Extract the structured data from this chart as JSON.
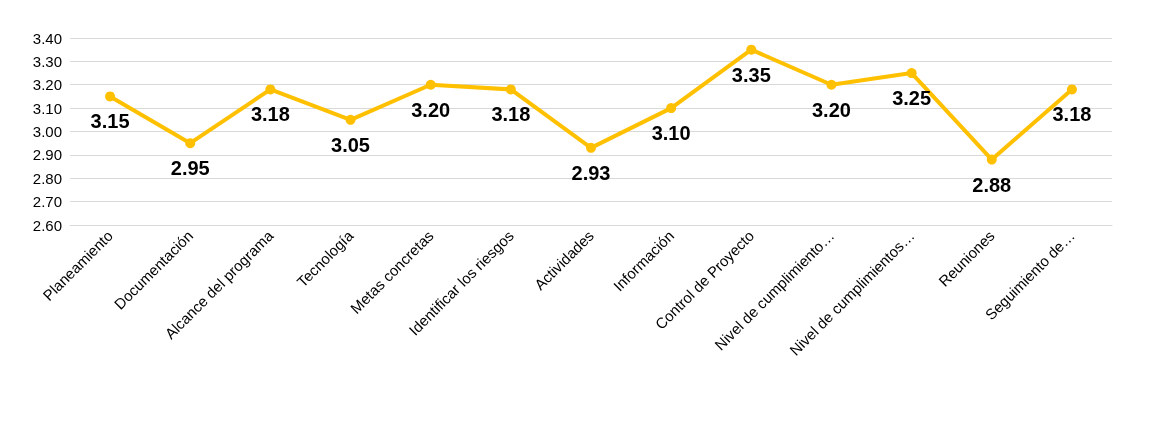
{
  "chart_data": {
    "type": "line",
    "categories": [
      "Planeamiento",
      "Documentación",
      "Alcance del programa",
      "Tecnología",
      "Metas concretas",
      "Identificar los riesgos",
      "Actividades",
      "Información",
      "Control de Proyecto",
      "Nivel de cumplimiento…",
      "Nivel de cumplimientos…",
      "Reuniones",
      "Seguimiento de…"
    ],
    "series": [
      {
        "color": "#ffc000",
        "values": [
          3.15,
          2.95,
          3.18,
          3.05,
          3.2,
          3.18,
          2.93,
          3.1,
          3.35,
          3.2,
          3.25,
          2.88,
          3.18
        ],
        "value_labels": [
          "3.15",
          "2.95",
          "3.18",
          "3.05",
          "3.20",
          "3.18",
          "2.93",
          "3.10",
          "3.35",
          "3.20",
          "3.25",
          "2.88",
          "3.18"
        ]
      }
    ],
    "ylim": [
      2.6,
      3.4
    ],
    "yticks": [
      {
        "value": 2.6,
        "label": "2.60"
      },
      {
        "value": 2.7,
        "label": "2.70"
      },
      {
        "value": 2.8,
        "label": "2.80"
      },
      {
        "value": 2.9,
        "label": "2.90"
      },
      {
        "value": 3.0,
        "label": "3.00"
      },
      {
        "value": 3.1,
        "label": "3.10"
      },
      {
        "value": 3.2,
        "label": "3.20"
      },
      {
        "value": 3.3,
        "label": "3.30"
      },
      {
        "value": 3.4,
        "label": "3.40"
      }
    ],
    "grid": "y",
    "marker": "circle",
    "line_style": "solid"
  }
}
